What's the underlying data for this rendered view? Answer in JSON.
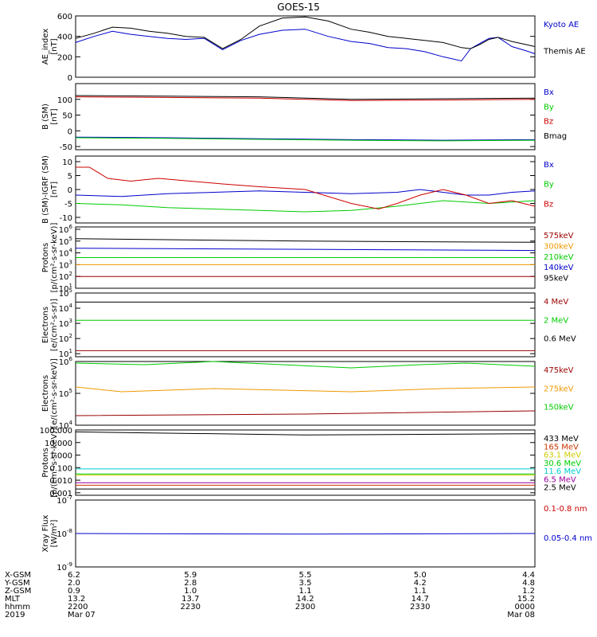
{
  "title": "GOES-15",
  "chart_data": [
    {
      "type": "line",
      "ylabel": "AE_index\n[nT]",
      "ylim": [
        0,
        600
      ],
      "yticks": [
        "0",
        "200",
        "400",
        "600"
      ],
      "series": [
        {
          "name": "Kyoto AE",
          "color": "#0000cc",
          "x": [
            0,
            0.04,
            0.08,
            0.12,
            0.16,
            0.2,
            0.24,
            0.28,
            0.32,
            0.36,
            0.4,
            0.45,
            0.5,
            0.55,
            0.6,
            0.64,
            0.68,
            0.72,
            0.76,
            0.8,
            0.84,
            0.86,
            0.88,
            0.9,
            0.92,
            0.95,
            0.98,
            1.0
          ],
          "values": [
            340,
            400,
            450,
            420,
            400,
            380,
            370,
            380,
            270,
            360,
            420,
            460,
            470,
            400,
            350,
            330,
            290,
            280,
            250,
            200,
            160,
            280,
            330,
            380,
            390,
            300,
            260,
            230
          ]
        },
        {
          "name": "Themis AE",
          "color": "#000000",
          "x": [
            0,
            0.04,
            0.08,
            0.12,
            0.16,
            0.2,
            0.24,
            0.28,
            0.32,
            0.36,
            0.4,
            0.45,
            0.5,
            0.55,
            0.6,
            0.64,
            0.68,
            0.72,
            0.76,
            0.8,
            0.84,
            0.86,
            0.88,
            0.9,
            0.92,
            0.95,
            0.98,
            1.0
          ],
          "values": [
            380,
            430,
            490,
            480,
            450,
            430,
            400,
            390,
            280,
            370,
            500,
            580,
            590,
            550,
            470,
            440,
            400,
            380,
            360,
            340,
            290,
            280,
            320,
            370,
            390,
            350,
            320,
            300
          ]
        }
      ]
    },
    {
      "type": "line",
      "ylabel": "B (SM)\n[nT]",
      "ylim": [
        -60,
        150
      ],
      "yticks": [
        "-50",
        "0",
        "50",
        "100"
      ],
      "series": [
        {
          "name": "Bx",
          "color": "#0000cc",
          "x": [
            0,
            0.2,
            0.4,
            0.6,
            0.8,
            1.0
          ],
          "values": [
            -20,
            -22,
            -25,
            -28,
            -30,
            -28
          ]
        },
        {
          "name": "By",
          "color": "#00cc00",
          "x": [
            0,
            0.2,
            0.4,
            0.6,
            0.8,
            1.0
          ],
          "values": [
            -22,
            -24,
            -27,
            -30,
            -32,
            -30
          ]
        },
        {
          "name": "Bz",
          "color": "#cc0000",
          "x": [
            0,
            0.2,
            0.4,
            0.6,
            0.8,
            1.0
          ],
          "values": [
            108,
            106,
            104,
            96,
            98,
            100
          ]
        },
        {
          "name": "Bmag",
          "color": "#000000",
          "x": [
            0,
            0.2,
            0.4,
            0.6,
            0.8,
            1.0
          ],
          "values": [
            112,
            110,
            108,
            100,
            102,
            104
          ]
        }
      ]
    },
    {
      "type": "line",
      "ylabel": "B (SM)-IGRF (SM)\n[nT]",
      "ylim": [
        -12,
        12
      ],
      "yticks": [
        "-10",
        "-5",
        "0",
        "5",
        "10"
      ],
      "series": [
        {
          "name": "Bx",
          "color": "#0000cc",
          "x": [
            0,
            0.1,
            0.2,
            0.3,
            0.4,
            0.5,
            0.6,
            0.7,
            0.75,
            0.8,
            0.85,
            0.9,
            0.95,
            1.0
          ],
          "values": [
            -2,
            -2.5,
            -1.5,
            -1,
            -0.5,
            -1,
            -1.5,
            -1,
            0,
            -1,
            -2,
            -2,
            -1,
            -0.5
          ]
        },
        {
          "name": "By",
          "color": "#00cc00",
          "x": [
            0,
            0.1,
            0.2,
            0.3,
            0.4,
            0.5,
            0.6,
            0.7,
            0.75,
            0.8,
            0.85,
            0.9,
            0.95,
            1.0
          ],
          "values": [
            -5,
            -5.5,
            -6.5,
            -7,
            -7.5,
            -8,
            -7.5,
            -6,
            -5,
            -4,
            -4.5,
            -5,
            -4.5,
            -4
          ]
        },
        {
          "name": "Bz",
          "color": "#cc0000",
          "x": [
            0,
            0.03,
            0.07,
            0.12,
            0.18,
            0.25,
            0.32,
            0.4,
            0.5,
            0.6,
            0.66,
            0.7,
            0.75,
            0.8,
            0.85,
            0.9,
            0.95,
            1.0
          ],
          "values": [
            8,
            8,
            4,
            3,
            4,
            3,
            2,
            1,
            0,
            -5,
            -7,
            -5,
            -2,
            0,
            -2,
            -5,
            -4,
            -6
          ]
        }
      ]
    },
    {
      "type": "line",
      "ylabel": "Protons\n[p/(cm²-s-sr-keV)]",
      "scale": "log",
      "ylim_exp": [
        1,
        6.2
      ],
      "ytick_exps": [
        1,
        2,
        3,
        4,
        5,
        6
      ],
      "series": [
        {
          "name": "575keV",
          "color": "#990000",
          "x": [
            0,
            1
          ],
          "values": [
            2,
            2
          ]
        },
        {
          "name": "300keV",
          "color": "#ee9900",
          "x": [
            0,
            1
          ],
          "values": [
            3,
            3
          ]
        },
        {
          "name": "210keV",
          "color": "#00cc00",
          "x": [
            0,
            1
          ],
          "values": [
            3.6,
            3.6
          ]
        },
        {
          "name": "140keV",
          "color": "#0000cc",
          "x": [
            0,
            0.5,
            1
          ],
          "values": [
            4.4,
            4.3,
            4.2
          ]
        },
        {
          "name": "95keV",
          "color": "#000000",
          "x": [
            0,
            0.5,
            1
          ],
          "values": [
            5.2,
            5,
            4.9
          ]
        }
      ]
    },
    {
      "type": "line",
      "ylabel": "Electrons\n[e/(cm²-s-sr)]",
      "scale": "log",
      "ylim_exp": [
        0.8,
        5
      ],
      "ytick_exps": [
        1,
        2,
        3,
        4,
        5
      ],
      "series": [
        {
          "name": "4 MeV",
          "color": "#990000",
          "x": [
            0,
            1
          ],
          "values": [
            1.2,
            1.2
          ]
        },
        {
          "name": "2 MeV",
          "color": "#00cc00",
          "x": [
            0,
            1
          ],
          "values": [
            3.2,
            3.2
          ]
        },
        {
          "name": "0.6 MeV",
          "color": "#000000",
          "x": [
            0,
            1
          ],
          "values": [
            4.4,
            4.4
          ]
        }
      ]
    },
    {
      "type": "line",
      "ylabel": "Electrons\n[e/(cm²-s-sr-keV)]",
      "scale": "log",
      "ylim_exp": [
        4,
        6
      ],
      "ytick_exps": [
        4,
        5,
        6
      ],
      "series": [
        {
          "name": "475keV",
          "color": "#990000",
          "x": [
            0,
            0.5,
            1
          ],
          "values": [
            4.3,
            4.35,
            4.45
          ]
        },
        {
          "name": "275keV",
          "color": "#ee9900",
          "x": [
            0,
            0.1,
            0.2,
            0.3,
            0.45,
            0.6,
            0.8,
            1.0
          ],
          "values": [
            5.2,
            5.05,
            5.1,
            5.15,
            5.1,
            5.05,
            5.15,
            5.2
          ]
        },
        {
          "name": "150keV",
          "color": "#00cc00",
          "x": [
            0,
            0.15,
            0.3,
            0.45,
            0.6,
            0.75,
            0.85,
            1.0
          ],
          "values": [
            5.95,
            5.9,
            6.0,
            5.9,
            5.8,
            5.9,
            5.95,
            5.85
          ]
        }
      ]
    },
    {
      "type": "line",
      "ylabel": "Protons\n[p/(cm²-s-sr-keV)]",
      "scale": "log",
      "ylim_exp": [
        -3.2,
        2
      ],
      "yticks": [
        "0.001",
        "0.010",
        "0.100",
        "1.000",
        "10.000",
        "100.000"
      ],
      "ytick_exps": [
        -3,
        -2,
        -1,
        0,
        1,
        2
      ],
      "series": [
        {
          "name": "433 MeV",
          "color": "#000000",
          "x": [
            0,
            0.5,
            1
          ],
          "values": [
            1.85,
            1.6,
            1.7
          ]
        },
        {
          "name": "165 MeV",
          "color": "#cc3300",
          "x": [
            0,
            1
          ],
          "values": [
            -2.4,
            -2.4
          ]
        },
        {
          "name": "63.1 MeV",
          "color": "#cccc00",
          "x": [
            0,
            1
          ],
          "values": [
            -1.6,
            -1.6
          ]
        },
        {
          "name": "30.6 MeV",
          "color": "#00cc00",
          "x": [
            0,
            1
          ],
          "values": [
            -1.5,
            -1.5
          ]
        },
        {
          "name": "11.6 MeV",
          "color": "#00cccc",
          "x": [
            0,
            1
          ],
          "values": [
            -1.1,
            -1.1
          ]
        },
        {
          "name": "6.5 MeV",
          "color": "#990099",
          "x": [
            0,
            1
          ],
          "values": [
            -2.2,
            -2.2
          ]
        },
        {
          "name": "2.5 MeV",
          "color": "#000000",
          "x": [
            0,
            1
          ],
          "values": [
            -2.7,
            -2.7
          ]
        }
      ]
    },
    {
      "type": "line",
      "ylabel": "Xray Flux\n[W/m²]",
      "scale": "log",
      "ylim_exp": [
        -9,
        -7
      ],
      "ytick_exps": [
        -9,
        -8,
        -7
      ],
      "series": [
        {
          "name": "0.1-0.8 nm",
          "color": "#cc0000",
          "x": [],
          "values": []
        },
        {
          "name": "0.05-0.4 nm",
          "color": "#0000cc",
          "x": [
            0,
            0.5,
            1
          ],
          "values": [
            -8,
            -8.02,
            -8.0
          ]
        }
      ]
    }
  ],
  "ephemeris": {
    "labels": [
      "X-GSM",
      "Y-GSM",
      "Z-GSM",
      "MLT",
      "hhmm",
      "2019"
    ],
    "columns": [
      {
        "x": 0.0,
        "values": [
          "6.2",
          "2.0",
          "0.9",
          "13.2",
          "2200",
          "Mar 07"
        ]
      },
      {
        "x": 0.25,
        "values": [
          "5.9",
          "2.8",
          "1.0",
          "13.7",
          "2230",
          ""
        ]
      },
      {
        "x": 0.5,
        "values": [
          "5.5",
          "3.5",
          "1.1",
          "14.2",
          "2300",
          ""
        ]
      },
      {
        "x": 0.75,
        "values": [
          "5.0",
          "4.2",
          "1.1",
          "14.7",
          "2330",
          ""
        ]
      },
      {
        "x": 1.0,
        "values": [
          "4.4",
          "4.8",
          "1.2",
          "15.2",
          "0000",
          "Mar 08"
        ]
      }
    ]
  }
}
